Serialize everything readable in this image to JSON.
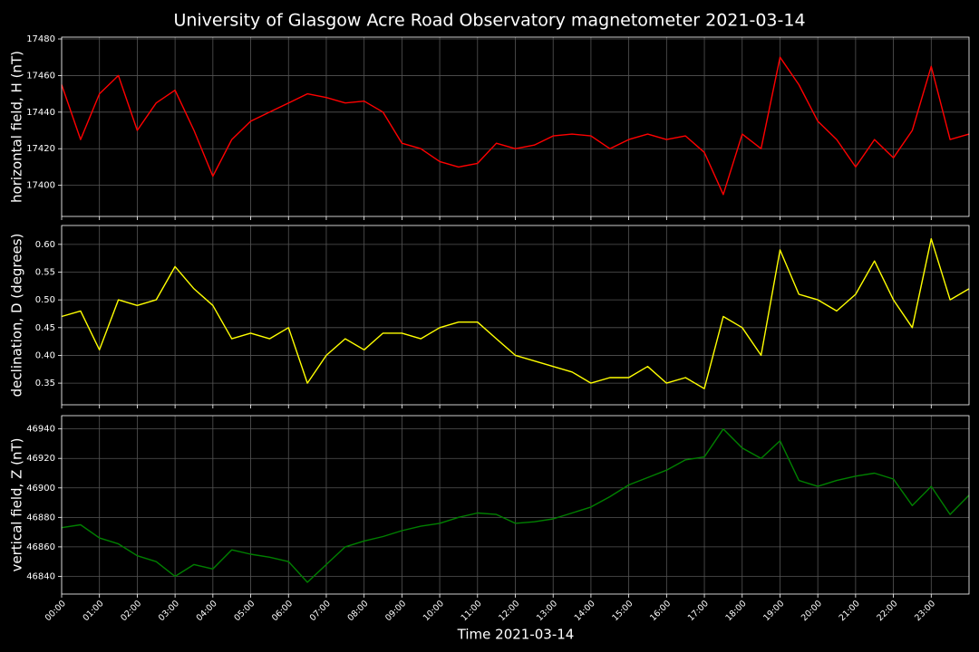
{
  "title": "University of Glasgow Acre Road Observatory magnetometer 2021-03-14",
  "xaxis": {
    "label": "Time 2021-03-14",
    "lim": [
      "00:00",
      "24:00"
    ],
    "ticks": [
      "00:00",
      "01:00",
      "02:00",
      "03:00",
      "04:00",
      "05:00",
      "06:00",
      "07:00",
      "08:00",
      "09:00",
      "10:00",
      "11:00",
      "12:00",
      "13:00",
      "14:00",
      "15:00",
      "16:00",
      "17:00",
      "18:00",
      "19:00",
      "20:00",
      "21:00",
      "22:00",
      "23:00"
    ]
  },
  "chart_data": [
    {
      "type": "line",
      "ylabel": "horizontal field, H (nT)",
      "color": "#ff0000",
      "grid": true,
      "ylim": [
        17383,
        17481
      ],
      "yticks": [
        17400,
        17420,
        17440,
        17460,
        17480
      ],
      "x": [
        "00:00",
        "00:30",
        "01:00",
        "01:30",
        "02:00",
        "02:30",
        "03:00",
        "03:30",
        "04:00",
        "04:30",
        "05:00",
        "05:30",
        "06:00",
        "06:30",
        "07:00",
        "07:30",
        "08:00",
        "08:30",
        "09:00",
        "09:30",
        "10:00",
        "10:30",
        "11:00",
        "11:30",
        "12:00",
        "12:30",
        "13:00",
        "13:30",
        "14:00",
        "14:30",
        "15:00",
        "15:30",
        "16:00",
        "16:30",
        "17:00",
        "17:30",
        "18:00",
        "18:30",
        "19:00",
        "19:30",
        "20:00",
        "20:30",
        "21:00",
        "21:30",
        "22:00",
        "22:30",
        "23:00",
        "23:30",
        "24:00"
      ],
      "values": [
        17455,
        17425,
        17450,
        17460,
        17430,
        17445,
        17452,
        17430,
        17405,
        17425,
        17435,
        17440,
        17445,
        17450,
        17448,
        17445,
        17446,
        17440,
        17423,
        17420,
        17413,
        17410,
        17412,
        17423,
        17420,
        17422,
        17427,
        17428,
        17427,
        17420,
        17425,
        17428,
        17425,
        17427,
        17418,
        17395,
        17428,
        17420,
        17470,
        17455,
        17435,
        17425,
        17410,
        17425,
        17415,
        17430,
        17465,
        17425,
        17428
      ]
    },
    {
      "type": "line",
      "ylabel": "declination, D (degrees)",
      "color": "#ffff00",
      "grid": true,
      "ylim": [
        0.311,
        0.634
      ],
      "yticks": [
        0.35,
        {
          "value": 0.4,
          "label": "0.40"
        },
        0.45,
        {
          "value": 0.5,
          "label": "0.50"
        },
        0.55,
        {
          "value": 0.6,
          "label": "0.60"
        }
      ],
      "x": [
        "00:00",
        "00:30",
        "01:00",
        "01:30",
        "02:00",
        "02:30",
        "03:00",
        "03:30",
        "04:00",
        "04:30",
        "05:00",
        "05:30",
        "06:00",
        "06:30",
        "07:00",
        "07:30",
        "08:00",
        "08:30",
        "09:00",
        "09:30",
        "10:00",
        "10:30",
        "11:00",
        "11:30",
        "12:00",
        "12:30",
        "13:00",
        "13:30",
        "14:00",
        "14:30",
        "15:00",
        "15:30",
        "16:00",
        "16:30",
        "17:00",
        "17:30",
        "18:00",
        "18:30",
        "19:00",
        "19:30",
        "20:00",
        "20:30",
        "21:00",
        "21:30",
        "22:00",
        "22:30",
        "23:00",
        "23:30",
        "24:00"
      ],
      "values": [
        0.47,
        0.48,
        0.41,
        0.5,
        0.49,
        0.5,
        0.56,
        0.52,
        0.49,
        0.43,
        0.44,
        0.43,
        0.45,
        0.35,
        0.4,
        0.43,
        0.41,
        0.44,
        0.44,
        0.43,
        0.45,
        0.46,
        0.46,
        0.43,
        0.4,
        0.39,
        0.38,
        0.37,
        0.35,
        0.36,
        0.36,
        0.38,
        0.35,
        0.36,
        0.34,
        0.47,
        0.45,
        0.4,
        0.59,
        0.51,
        0.5,
        0.48,
        0.51,
        0.57,
        0.5,
        0.45,
        0.61,
        0.5,
        0.52
      ]
    },
    {
      "type": "line",
      "ylabel": "vertical field, Z (nT)",
      "color": "#008000",
      "grid": true,
      "ylim": [
        46828,
        46949
      ],
      "yticks": [
        46840,
        46860,
        46880,
        46900,
        46920,
        46940
      ],
      "x": [
        "00:00",
        "00:30",
        "01:00",
        "01:30",
        "02:00",
        "02:30",
        "03:00",
        "03:30",
        "04:00",
        "04:30",
        "05:00",
        "05:30",
        "06:00",
        "06:30",
        "07:00",
        "07:30",
        "08:00",
        "08:30",
        "09:00",
        "09:30",
        "10:00",
        "10:30",
        "11:00",
        "11:30",
        "12:00",
        "12:30",
        "13:00",
        "13:30",
        "14:00",
        "14:30",
        "15:00",
        "15:30",
        "16:00",
        "16:30",
        "17:00",
        "17:30",
        "18:00",
        "18:30",
        "19:00",
        "19:30",
        "20:00",
        "20:30",
        "21:00",
        "21:30",
        "22:00",
        "22:30",
        "23:00",
        "23:30",
        "24:00"
      ],
      "values": [
        46873,
        46875,
        46866,
        46862,
        46854,
        46850,
        46840,
        46848,
        46845,
        46858,
        46855,
        46853,
        46850,
        46836,
        46848,
        46860,
        46864,
        46867,
        46871,
        46874,
        46876,
        46880,
        46883,
        46882,
        46876,
        46877,
        46879,
        46883,
        46887,
        46894,
        46902,
        46907,
        46912,
        46919,
        46921,
        46940,
        46927,
        46920,
        46932,
        46905,
        46901,
        46905,
        46908,
        46910,
        46906,
        46888,
        46901,
        46882,
        46895
      ]
    }
  ]
}
